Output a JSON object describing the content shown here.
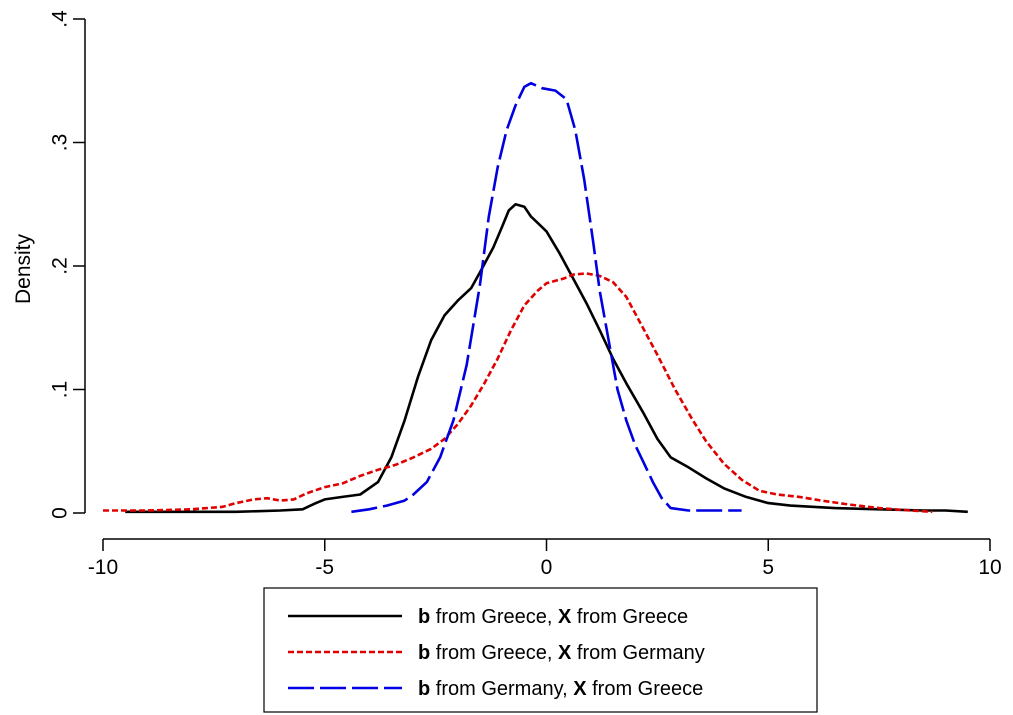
{
  "chart_data": {
    "type": "line",
    "title": "",
    "xlabel": "",
    "ylabel": "Density",
    "xlim": [
      -10,
      10
    ],
    "ylim": [
      0,
      0.4
    ],
    "xticks": [
      -10,
      -5,
      0,
      5,
      10
    ],
    "xtick_labels": [
      "-10",
      "-5",
      "0",
      "5",
      "10"
    ],
    "yticks": [
      0,
      0.1,
      0.2,
      0.3,
      0.4
    ],
    "ytick_labels": [
      "0",
      ".1",
      ".2",
      ".3",
      ".4"
    ],
    "grid": false,
    "legend_position": "bottom",
    "series": [
      {
        "name": "b from Greece, X from Greece",
        "legend": {
          "bold1": "b",
          "text1": " from Greece, ",
          "bold2": "X",
          "text2": " from Greece"
        },
        "color": "#000000",
        "dash": "solid",
        "points": [
          [
            -9.5,
            0.001
          ],
          [
            -8,
            0.001
          ],
          [
            -7,
            0.001
          ],
          [
            -6,
            0.002
          ],
          [
            -5.5,
            0.003
          ],
          [
            -5.2,
            0.008
          ],
          [
            -5,
            0.011
          ],
          [
            -4.6,
            0.013
          ],
          [
            -4.2,
            0.015
          ],
          [
            -3.8,
            0.025
          ],
          [
            -3.5,
            0.045
          ],
          [
            -3.2,
            0.075
          ],
          [
            -2.9,
            0.11
          ],
          [
            -2.6,
            0.14
          ],
          [
            -2.3,
            0.16
          ],
          [
            -2.0,
            0.172
          ],
          [
            -1.7,
            0.182
          ],
          [
            -1.5,
            0.195
          ],
          [
            -1.2,
            0.215
          ],
          [
            -1.0,
            0.232
          ],
          [
            -0.85,
            0.245
          ],
          [
            -0.7,
            0.25
          ],
          [
            -0.5,
            0.248
          ],
          [
            -0.35,
            0.24
          ],
          [
            -0.2,
            0.235
          ],
          [
            0,
            0.228
          ],
          [
            0.3,
            0.21
          ],
          [
            0.6,
            0.19
          ],
          [
            0.9,
            0.17
          ],
          [
            1.2,
            0.148
          ],
          [
            1.5,
            0.125
          ],
          [
            1.8,
            0.105
          ],
          [
            2.2,
            0.08
          ],
          [
            2.5,
            0.06
          ],
          [
            2.8,
            0.045
          ],
          [
            3.2,
            0.037
          ],
          [
            3.6,
            0.028
          ],
          [
            4.0,
            0.02
          ],
          [
            4.5,
            0.013
          ],
          [
            5.0,
            0.008
          ],
          [
            5.5,
            0.006
          ],
          [
            6.5,
            0.004
          ],
          [
            7.5,
            0.003
          ],
          [
            8.5,
            0.002
          ],
          [
            9.0,
            0.002
          ],
          [
            9.5,
            0.001
          ]
        ]
      },
      {
        "name": "b from Greece, X from Germany",
        "legend": {
          "bold1": "b",
          "text1": " from Greece, ",
          "bold2": "X",
          "text2": " from Germany"
        },
        "color": "#e00000",
        "dash": "short-dash",
        "points": [
          [
            -10,
            0.002
          ],
          [
            -9,
            0.002
          ],
          [
            -8,
            0.003
          ],
          [
            -7.3,
            0.005
          ],
          [
            -7,
            0.008
          ],
          [
            -6.6,
            0.011
          ],
          [
            -6.3,
            0.012
          ],
          [
            -6.0,
            0.01
          ],
          [
            -5.7,
            0.011
          ],
          [
            -5.4,
            0.016
          ],
          [
            -5.0,
            0.021
          ],
          [
            -4.6,
            0.024
          ],
          [
            -4.2,
            0.03
          ],
          [
            -3.8,
            0.035
          ],
          [
            -3.4,
            0.039
          ],
          [
            -3.0,
            0.045
          ],
          [
            -2.6,
            0.052
          ],
          [
            -2.3,
            0.06
          ],
          [
            -2.0,
            0.072
          ],
          [
            -1.7,
            0.087
          ],
          [
            -1.4,
            0.105
          ],
          [
            -1.1,
            0.125
          ],
          [
            -0.8,
            0.148
          ],
          [
            -0.5,
            0.168
          ],
          [
            -0.2,
            0.18
          ],
          [
            0.0,
            0.186
          ],
          [
            0.2,
            0.188
          ],
          [
            0.4,
            0.19
          ],
          [
            0.6,
            0.193
          ],
          [
            0.9,
            0.194
          ],
          [
            1.2,
            0.192
          ],
          [
            1.5,
            0.187
          ],
          [
            1.8,
            0.175
          ],
          [
            2.1,
            0.155
          ],
          [
            2.5,
            0.128
          ],
          [
            2.9,
            0.1
          ],
          [
            3.3,
            0.075
          ],
          [
            3.6,
            0.058
          ],
          [
            4.0,
            0.04
          ],
          [
            4.4,
            0.027
          ],
          [
            4.8,
            0.018
          ],
          [
            5.2,
            0.015
          ],
          [
            5.7,
            0.013
          ],
          [
            6.2,
            0.01
          ],
          [
            6.8,
            0.007
          ],
          [
            7.5,
            0.004
          ],
          [
            8.2,
            0.002
          ],
          [
            8.7,
            0.001
          ]
        ]
      },
      {
        "name": "b from Germany, X from Greece",
        "legend": {
          "bold1": "b",
          "text1": " from Germany, ",
          "bold2": "X",
          "text2": " from Greece"
        },
        "color": "#0000e0",
        "dash": "long-dash",
        "points": [
          [
            -4.4,
            0.001
          ],
          [
            -4.0,
            0.003
          ],
          [
            -3.6,
            0.006
          ],
          [
            -3.2,
            0.01
          ],
          [
            -3.0,
            0.015
          ],
          [
            -2.7,
            0.025
          ],
          [
            -2.4,
            0.045
          ],
          [
            -2.1,
            0.075
          ],
          [
            -1.8,
            0.12
          ],
          [
            -1.5,
            0.185
          ],
          [
            -1.3,
            0.24
          ],
          [
            -1.1,
            0.28
          ],
          [
            -0.9,
            0.31
          ],
          [
            -0.7,
            0.33
          ],
          [
            -0.5,
            0.345
          ],
          [
            -0.35,
            0.348
          ],
          [
            -0.1,
            0.344
          ],
          [
            0.2,
            0.342
          ],
          [
            0.45,
            0.335
          ],
          [
            0.65,
            0.31
          ],
          [
            0.85,
            0.27
          ],
          [
            1.05,
            0.22
          ],
          [
            1.2,
            0.18
          ],
          [
            1.4,
            0.14
          ],
          [
            1.6,
            0.1
          ],
          [
            1.8,
            0.075
          ],
          [
            2.0,
            0.055
          ],
          [
            2.2,
            0.04
          ],
          [
            2.4,
            0.025
          ],
          [
            2.6,
            0.012
          ],
          [
            2.8,
            0.004
          ],
          [
            3.2,
            0.002
          ],
          [
            3.8,
            0.002
          ],
          [
            4.4,
            0.002
          ]
        ]
      }
    ]
  }
}
